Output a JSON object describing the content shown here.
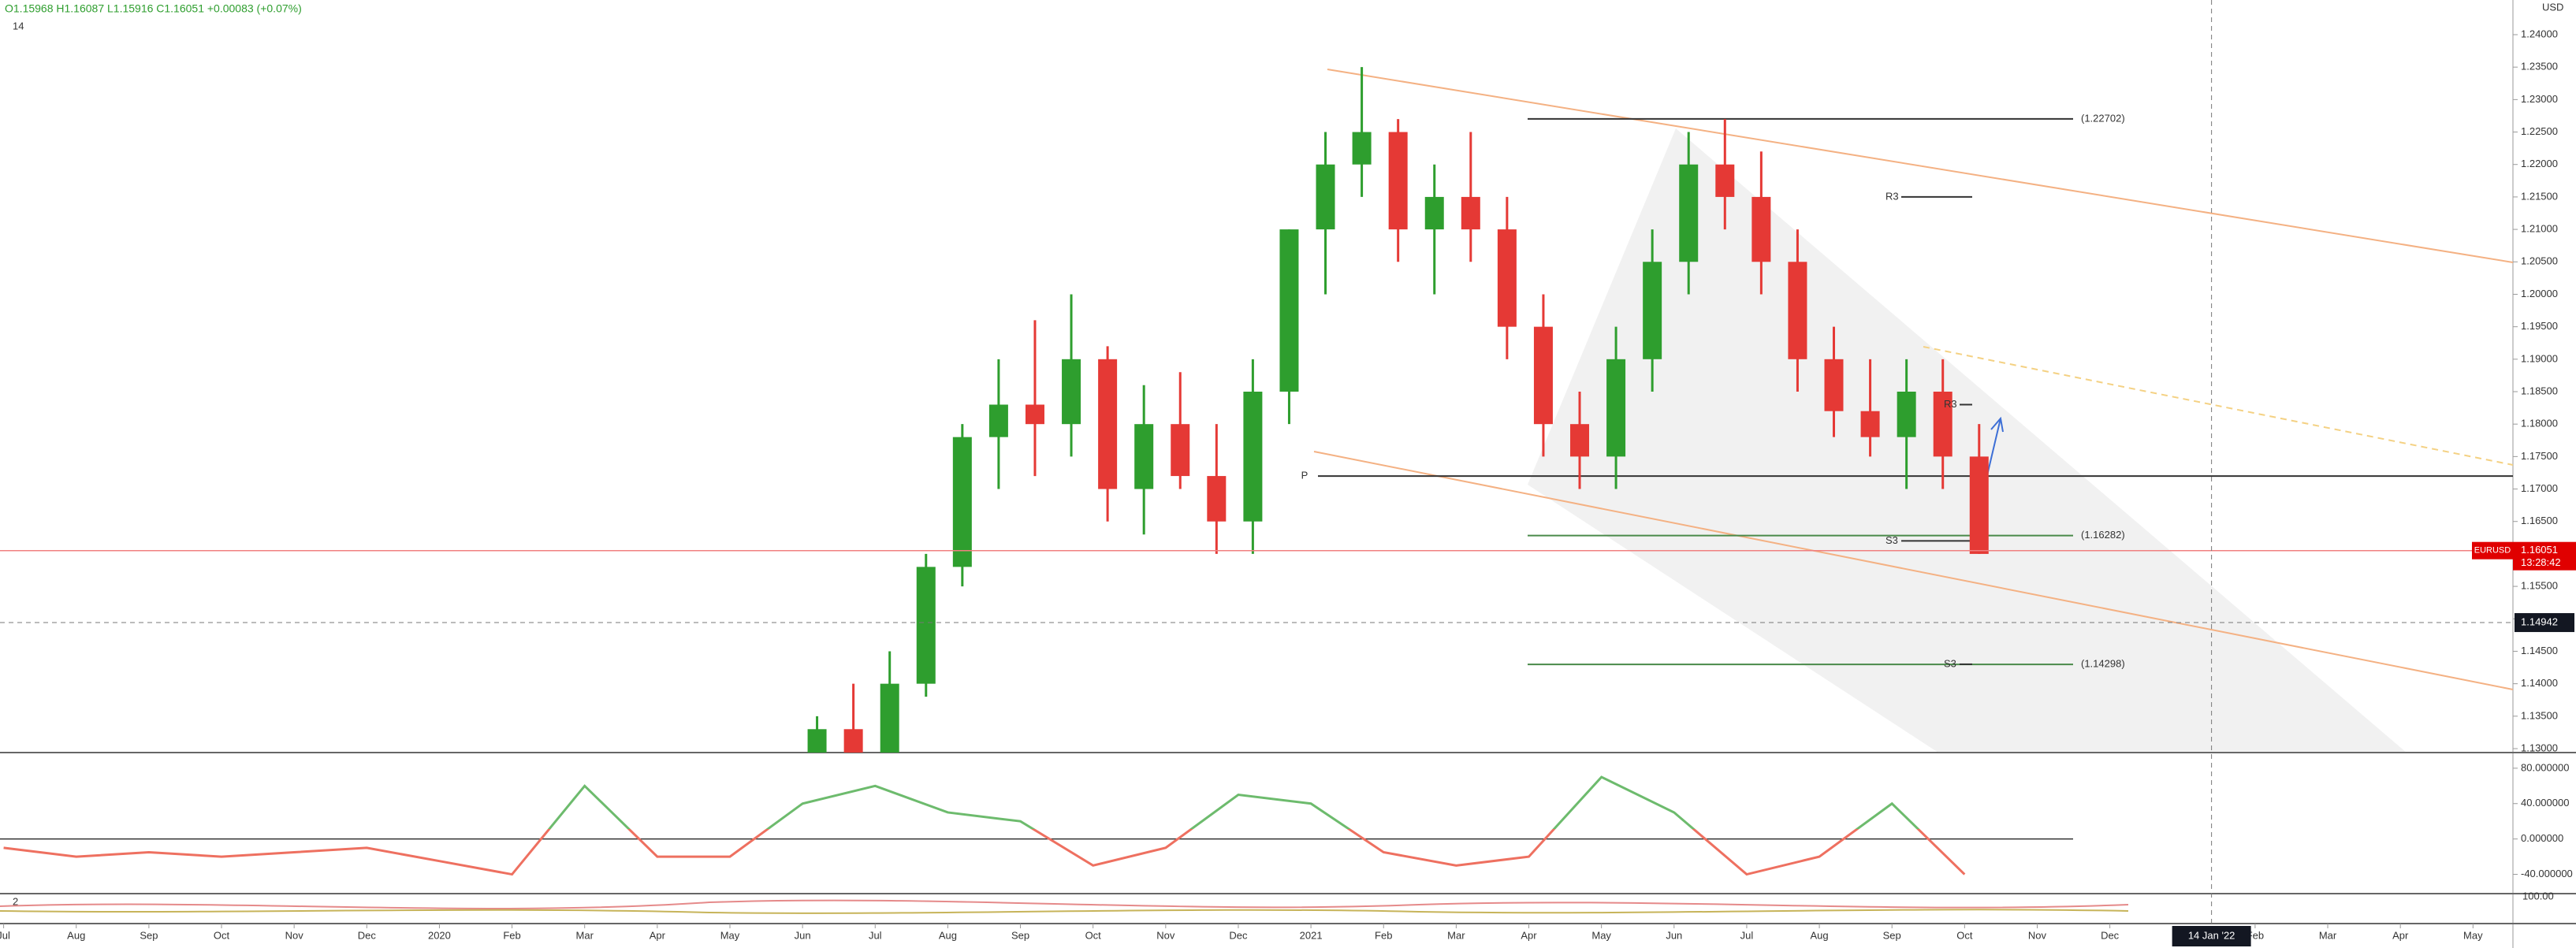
{
  "chart_data": {
    "type": "candlestick",
    "symbol": "EURUSD",
    "ohlc_text": "O1.15968 H1.16087 L1.15916 C1.16051 +0.00083 (+0.07%)",
    "interval": "14",
    "currency": "USD",
    "up_color": "#2e9e2e",
    "down_color": "#e53935",
    "x": [
      11.2,
      11.7,
      12.2,
      12.7,
      13.2,
      13.7,
      14.2,
      14.7,
      15.2,
      15.7,
      16.2,
      16.7,
      17.2,
      17.7,
      18.2,
      18.7,
      19.2,
      19.7,
      20.2,
      20.7,
      21.2,
      21.7,
      22.2,
      22.7,
      23.2,
      23.7,
      24.2,
      24.7,
      25.2,
      25.7,
      26.2,
      26.7,
      27.2
    ],
    "open": [
      1.125,
      1.133,
      1.125,
      1.14,
      1.158,
      1.178,
      1.183,
      1.18,
      1.19,
      1.17,
      1.18,
      1.172,
      1.165,
      1.185,
      1.21,
      1.22,
      1.225,
      1.21,
      1.215,
      1.21,
      1.195,
      1.18,
      1.175,
      1.19,
      1.205,
      1.22,
      1.215,
      1.205,
      1.19,
      1.182,
      1.178,
      1.185,
      1.175
    ],
    "high": [
      1.135,
      1.14,
      1.145,
      1.16,
      1.18,
      1.19,
      1.196,
      1.2,
      1.192,
      1.186,
      1.188,
      1.18,
      1.19,
      1.21,
      1.225,
      1.235,
      1.227,
      1.22,
      1.225,
      1.215,
      1.2,
      1.185,
      1.195,
      1.21,
      1.225,
      1.227,
      1.222,
      1.21,
      1.195,
      1.19,
      1.19,
      1.19,
      1.18
    ],
    "low": [
      1.12,
      1.12,
      1.12,
      1.138,
      1.155,
      1.17,
      1.172,
      1.175,
      1.165,
      1.163,
      1.17,
      1.16,
      1.16,
      1.18,
      1.2,
      1.215,
      1.205,
      1.2,
      1.205,
      1.19,
      1.175,
      1.17,
      1.17,
      1.185,
      1.2,
      1.21,
      1.2,
      1.185,
      1.178,
      1.175,
      1.17,
      1.17,
      1.16
    ],
    "close": [
      1.133,
      1.125,
      1.14,
      1.158,
      1.178,
      1.183,
      1.18,
      1.19,
      1.17,
      1.18,
      1.172,
      1.165,
      1.185,
      1.21,
      1.22,
      1.225,
      1.21,
      1.215,
      1.21,
      1.195,
      1.18,
      1.175,
      1.19,
      1.205,
      1.22,
      1.215,
      1.205,
      1.19,
      1.182,
      1.178,
      1.185,
      1.175,
      1.16
    ],
    "ylim": [
      1.13,
      1.24
    ],
    "yticks": [
      {
        "value": 1.13,
        "label": "1.13000"
      },
      {
        "value": 1.135,
        "label": "1.13500"
      },
      {
        "value": 1.14,
        "label": "1.14000"
      },
      {
        "value": 1.145,
        "label": "1.14500"
      },
      {
        "value": 1.15,
        "label": "1.15000"
      },
      {
        "value": 1.155,
        "label": "1.15500"
      },
      {
        "value": 1.16,
        "label": "1.16000"
      },
      {
        "value": 1.165,
        "label": "1.16500"
      },
      {
        "value": 1.17,
        "label": "1.17000"
      },
      {
        "value": 1.175,
        "label": "1.17500"
      },
      {
        "value": 1.18,
        "label": "1.18000"
      },
      {
        "value": 1.185,
        "label": "1.18500"
      },
      {
        "value": 1.19,
        "label": "1.19000"
      },
      {
        "value": 1.195,
        "label": "1.19500"
      },
      {
        "value": 1.2,
        "label": "1.20000"
      },
      {
        "value": 1.205,
        "label": "1.20500"
      },
      {
        "value": 1.21,
        "label": "1.21000"
      },
      {
        "value": 1.215,
        "label": "1.21500"
      },
      {
        "value": 1.22,
        "label": "1.22000"
      },
      {
        "value": 1.225,
        "label": "1.22500"
      },
      {
        "value": 1.23,
        "label": "1.23000"
      },
      {
        "value": 1.235,
        "label": "1.23500"
      },
      {
        "value": 1.24,
        "label": "1.24000"
      }
    ],
    "xlim": [
      -0.05,
      34.55
    ],
    "xticks": [
      {
        "value": 0,
        "label": "Jul"
      },
      {
        "value": 1,
        "label": "Aug"
      },
      {
        "value": 2,
        "label": "Sep"
      },
      {
        "value": 3,
        "label": "Oct"
      },
      {
        "value": 4,
        "label": "Nov"
      },
      {
        "value": 5,
        "label": "Dec"
      },
      {
        "value": 6,
        "label": "2020"
      },
      {
        "value": 7,
        "label": "Feb"
      },
      {
        "value": 8,
        "label": "Mar"
      },
      {
        "value": 9,
        "label": "Apr"
      },
      {
        "value": 10,
        "label": "May"
      },
      {
        "value": 11,
        "label": "Jun"
      },
      {
        "value": 12,
        "label": "Jul"
      },
      {
        "value": 13,
        "label": "Aug"
      },
      {
        "value": 14,
        "label": "Sep"
      },
      {
        "value": 15,
        "label": "Oct"
      },
      {
        "value": 16,
        "label": "Nov"
      },
      {
        "value": 17,
        "label": "Dec"
      },
      {
        "value": 18,
        "label": "2021"
      },
      {
        "value": 19,
        "label": "Feb"
      },
      {
        "value": 20,
        "label": "Mar"
      },
      {
        "value": 21,
        "label": "Apr"
      },
      {
        "value": 22,
        "label": "May"
      },
      {
        "value": 23,
        "label": "Jun"
      },
      {
        "value": 24,
        "label": "Jul"
      },
      {
        "value": 25,
        "label": "Aug"
      },
      {
        "value": 26,
        "label": "Sep"
      },
      {
        "value": 27,
        "label": "Oct"
      },
      {
        "value": 28,
        "label": "Nov"
      },
      {
        "value": 29,
        "label": "Dec"
      },
      {
        "value": 31,
        "label": "Feb"
      },
      {
        "value": 32,
        "label": "Mar"
      },
      {
        "value": 33,
        "label": "Apr"
      },
      {
        "value": 34,
        "label": "May"
      }
    ],
    "levels": [
      {
        "name": "",
        "label": "(1.22702)",
        "value": 1.22702,
        "color": "#333333"
      },
      {
        "name": "P",
        "label": "",
        "value": 1.172,
        "color": "#333333"
      },
      {
        "name": "",
        "label": "(1.16282)",
        "value": 1.16282,
        "color": "#4a8a4a"
      },
      {
        "name": "",
        "label": "(1.14298)",
        "value": 1.14298,
        "color": "#4a8a4a"
      }
    ],
    "pivots": [
      {
        "label": "R3",
        "value": 1.215
      },
      {
        "label": "R3",
        "value": 1.183
      },
      {
        "label": "S3",
        "value": 1.162
      },
      {
        "label": "S3",
        "value": 1.143
      }
    ],
    "last_price": {
      "value": 1.16051,
      "label": "1.16051",
      "countdown": "13:28:42"
    },
    "crosshair": {
      "value": 1.14942,
      "label": "1.14942",
      "x": 30.4,
      "x_label": "14 Jan '22"
    },
    "oscillator": {
      "x": [
        0,
        1,
        2,
        3,
        4,
        5,
        6,
        7,
        8,
        9,
        10,
        11,
        12,
        13,
        14,
        15,
        16,
        17,
        18,
        19,
        20,
        21,
        22,
        23,
        24,
        25,
        26,
        27
      ],
      "values": [
        -10,
        -20,
        -15,
        -20,
        -15,
        -10,
        -25,
        -40,
        60,
        -20,
        -20,
        40,
        60,
        30,
        20,
        -30,
        -10,
        50,
        40,
        -15,
        -30,
        -20,
        70,
        30,
        -40,
        -20,
        40,
        -40
      ],
      "ylim": [
        -60,
        95
      ],
      "yticks": [
        {
          "value": 80,
          "label": "80.000000"
        },
        {
          "value": 40,
          "label": "40.000000"
        },
        {
          "value": 0,
          "label": "0.000000"
        },
        {
          "value": -40,
          "label": "-40.000000"
        }
      ]
    },
    "lower_pane": {
      "interval": "2",
      "tick": {
        "value": 100,
        "label": "100.00"
      }
    }
  }
}
